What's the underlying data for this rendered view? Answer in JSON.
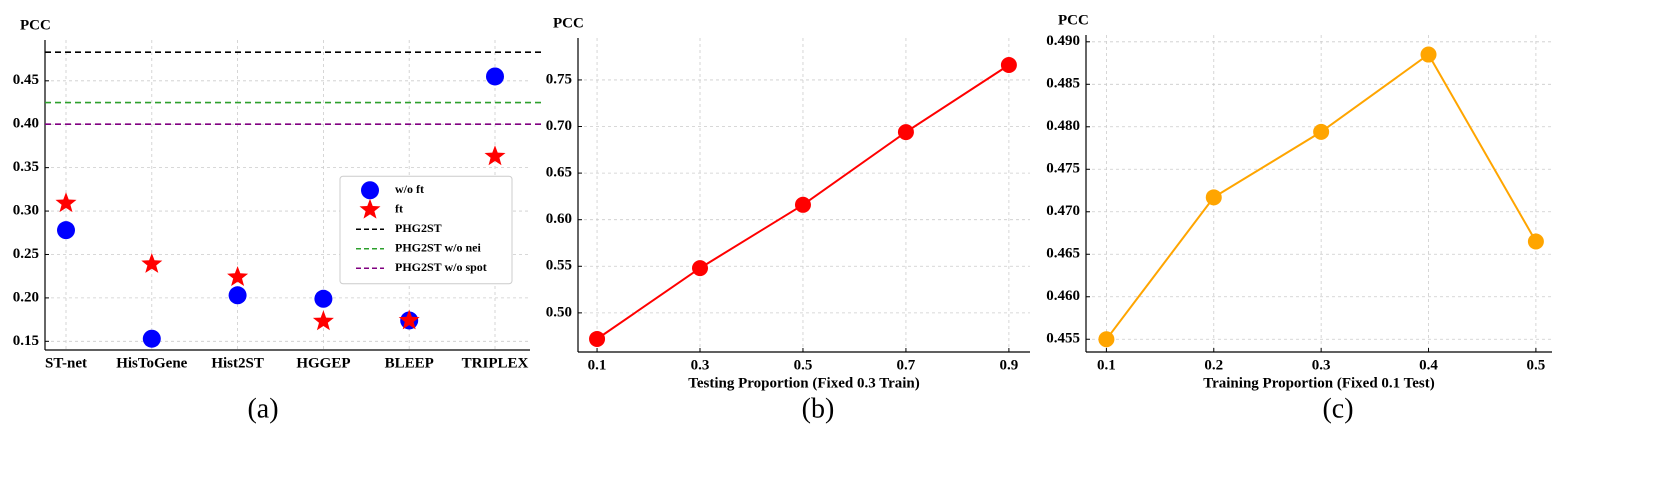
{
  "chart_data": [
    {
      "type": "scatter",
      "ylabel": "PCC",
      "caption": "(a)",
      "categories": [
        "ST-net",
        "HisToGene",
        "Hist2ST",
        "HGGEP",
        "BLEEP",
        "TRIPLEX"
      ],
      "series": [
        {
          "name": "w/o ft",
          "color": "#0000ff",
          "marker": "circle",
          "values": [
            0.278,
            0.153,
            0.203,
            0.199,
            0.174,
            0.455
          ]
        },
        {
          "name": "ft",
          "color": "#ff0000",
          "marker": "star",
          "values": [
            0.309,
            0.239,
            0.224,
            0.173,
            0.174,
            0.363
          ]
        }
      ],
      "hlines": [
        {
          "name": "PHG2ST",
          "color": "#000000",
          "value": 0.483
        },
        {
          "name": "PHG2ST w/o nei",
          "color": "#2ca02c",
          "value": 0.425
        },
        {
          "name": "PHG2ST w/o spot",
          "color": "#800080",
          "value": 0.4
        }
      ],
      "ylim": [
        0.14,
        0.497
      ],
      "yticks": [
        0.15,
        {
          "value": 0.2,
          "label": "0.20"
        },
        0.25,
        {
          "value": 0.3,
          "label": "0.30"
        },
        0.35,
        {
          "value": 0.4,
          "label": "0.40"
        },
        0.45
      ],
      "grid": true,
      "legend": "center right"
    },
    {
      "type": "line",
      "ylabel": "PCC",
      "caption": "(b)",
      "xlabel": "Testing Proportion (Fixed 0.3 Train)",
      "x": [
        0.1,
        0.3,
        0.5,
        0.7,
        0.9
      ],
      "values": [
        0.472,
        0.548,
        0.616,
        0.694,
        0.766
      ],
      "color": "#ff0000",
      "xlim": [
        0.063,
        0.941
      ],
      "xticks": [
        0.1,
        0.3,
        0.5,
        0.7,
        0.9
      ],
      "ylim": [
        0.458,
        0.795
      ],
      "yticks": [
        {
          "value": 0.5,
          "label": "0.50"
        },
        0.55,
        {
          "value": 0.6,
          "label": "0.60"
        },
        0.65,
        {
          "value": 0.7,
          "label": "0.70"
        },
        0.75
      ],
      "grid": true
    },
    {
      "type": "line",
      "ylabel": "PCC",
      "caption": "(c)",
      "xlabel": "Training Proportion (Fixed 0.1 Test)",
      "x": [
        0.1,
        0.2,
        0.3,
        0.4,
        0.5
      ],
      "values": [
        0.455,
        0.4717,
        0.4794,
        0.4885,
        0.4665
      ],
      "color": "#ffa500",
      "xlim": [
        0.081,
        0.515
      ],
      "xticks": [
        0.1,
        0.2,
        0.3,
        0.4,
        0.5
      ],
      "ylim": [
        0.4535,
        0.4908
      ],
      "yticks": [
        0.455,
        {
          "value": 0.46,
          "label": "0.460"
        },
        0.465,
        {
          "value": 0.47,
          "label": "0.470"
        },
        0.475,
        {
          "value": 0.48,
          "label": "0.480"
        },
        0.485,
        {
          "value": 0.49,
          "label": "0.490"
        }
      ],
      "grid": true
    }
  ]
}
